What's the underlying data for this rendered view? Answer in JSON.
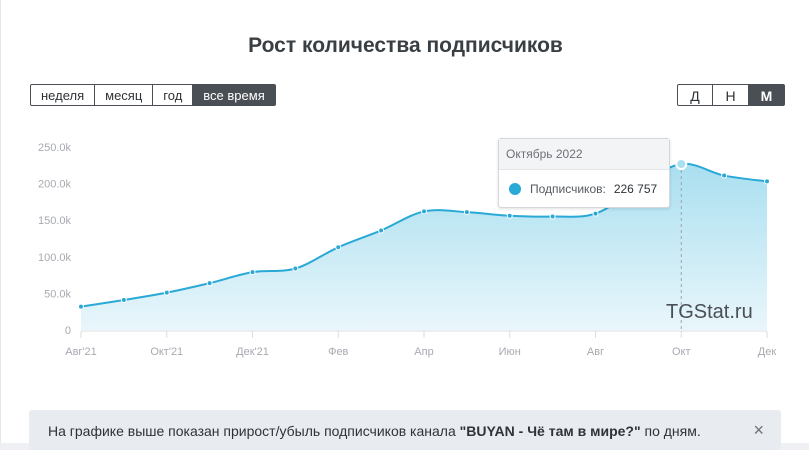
{
  "title": "Рост количества подписчиков",
  "range_buttons": [
    {
      "label": "неделя",
      "active": false
    },
    {
      "label": "месяц",
      "active": false
    },
    {
      "label": "год",
      "active": false
    },
    {
      "label": "все время",
      "active": true
    }
  ],
  "granularity_buttons": [
    {
      "label": "Д",
      "active": false
    },
    {
      "label": "Н",
      "active": false
    },
    {
      "label": "М",
      "active": true
    }
  ],
  "tooltip": {
    "header": "Октябрь 2022",
    "series_label": "Подписчиков:",
    "value": "226 757"
  },
  "watermark": "TGStat.ru",
  "notice": {
    "prefix": "На графике выше показан прирост/убыль подписчиков канала ",
    "channel": "\"BUYAN - Чё там в мире?\"",
    "suffix": " по дням.",
    "close": "×"
  },
  "colors": {
    "line": "#29a9d6",
    "area_top": "#a9dff0",
    "area_bottom": "#e9f6fb"
  },
  "chart_data": {
    "type": "area",
    "x": [
      "2021-08",
      "2021-09",
      "2021-10",
      "2021-11",
      "2021-12",
      "2022-01",
      "2022-02",
      "2022-03",
      "2022-04",
      "2022-05",
      "2022-06",
      "2022-07",
      "2022-08",
      "2022-09",
      "2022-10",
      "2022-11",
      "2022-12"
    ],
    "values": [
      32000,
      41000,
      51000,
      64000,
      79000,
      84000,
      113000,
      136000,
      162000,
      161000,
      156000,
      155000,
      159000,
      195000,
      226757,
      211000,
      203000
    ],
    "x_tick_labels": [
      "Авг'21",
      "",
      "Окт'21",
      "",
      "Дек'21",
      "",
      "Фев",
      "",
      "Апр",
      "",
      "Июн",
      "",
      "Авг",
      "",
      "Окт",
      "",
      "Дек"
    ],
    "y_ticks": [
      0,
      50000,
      100000,
      150000,
      200000,
      250000
    ],
    "y_tick_labels": [
      "0",
      "50.0k",
      "100.0k",
      "150.0k",
      "200.0k",
      "250.0k"
    ],
    "ylim": [
      0,
      250000
    ],
    "grid": false,
    "highlight_index": 14
  }
}
